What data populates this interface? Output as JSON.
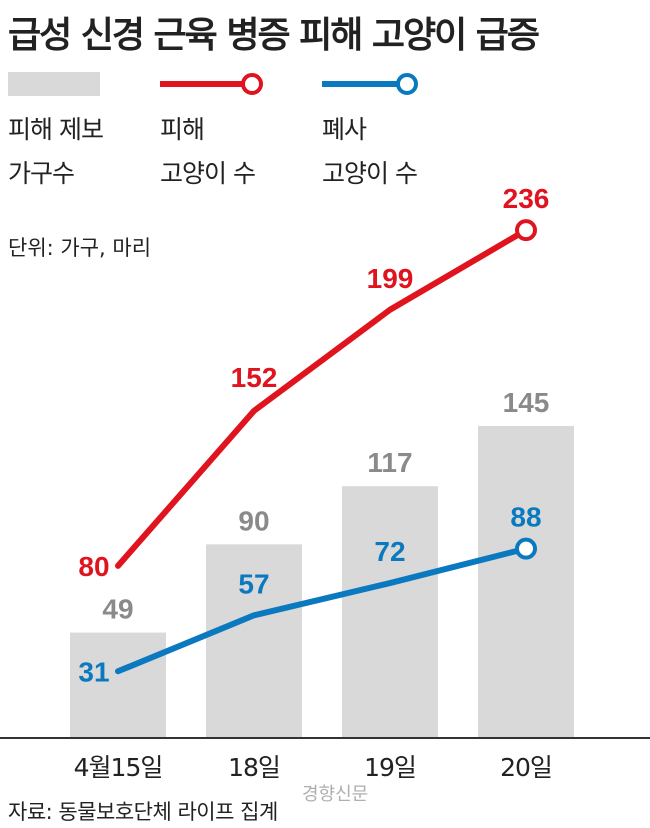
{
  "title": "급성 신경 근육 병증 피해 고양이 급증",
  "legend": [
    {
      "line1": "피해 제보",
      "line2": "가구수",
      "marker": "bar",
      "color": "#d9d9d9"
    },
    {
      "line1": "피해",
      "line2": "고양이 수",
      "marker": "line",
      "color": "#e0141e"
    },
    {
      "line1": "폐사",
      "line2": "고양이 수",
      "marker": "line",
      "color": "#0a79bf"
    }
  ],
  "unit": "단위: 가구, 마리",
  "source": "자료: 동물보호단체 라이프 집계",
  "watermark": "경향신문",
  "colors": {
    "bar": "#d9d9d9",
    "bar_label": "#8a8a8a",
    "damaged": "#e0141e",
    "dead": "#0a79bf",
    "axis": "#333333"
  },
  "chart_data": {
    "type": "bar",
    "categories": [
      "4월15일",
      "18일",
      "19일",
      "20일"
    ],
    "ylim": [
      0,
      250
    ],
    "series": [
      {
        "name": "피해 제보 가구수",
        "kind": "bar",
        "values": [
          49,
          90,
          117,
          145
        ]
      },
      {
        "name": "피해 고양이 수",
        "kind": "line",
        "values": [
          80,
          152,
          199,
          236
        ]
      },
      {
        "name": "폐사 고양이 수",
        "kind": "line",
        "values": [
          31,
          57,
          72,
          88
        ]
      }
    ]
  }
}
